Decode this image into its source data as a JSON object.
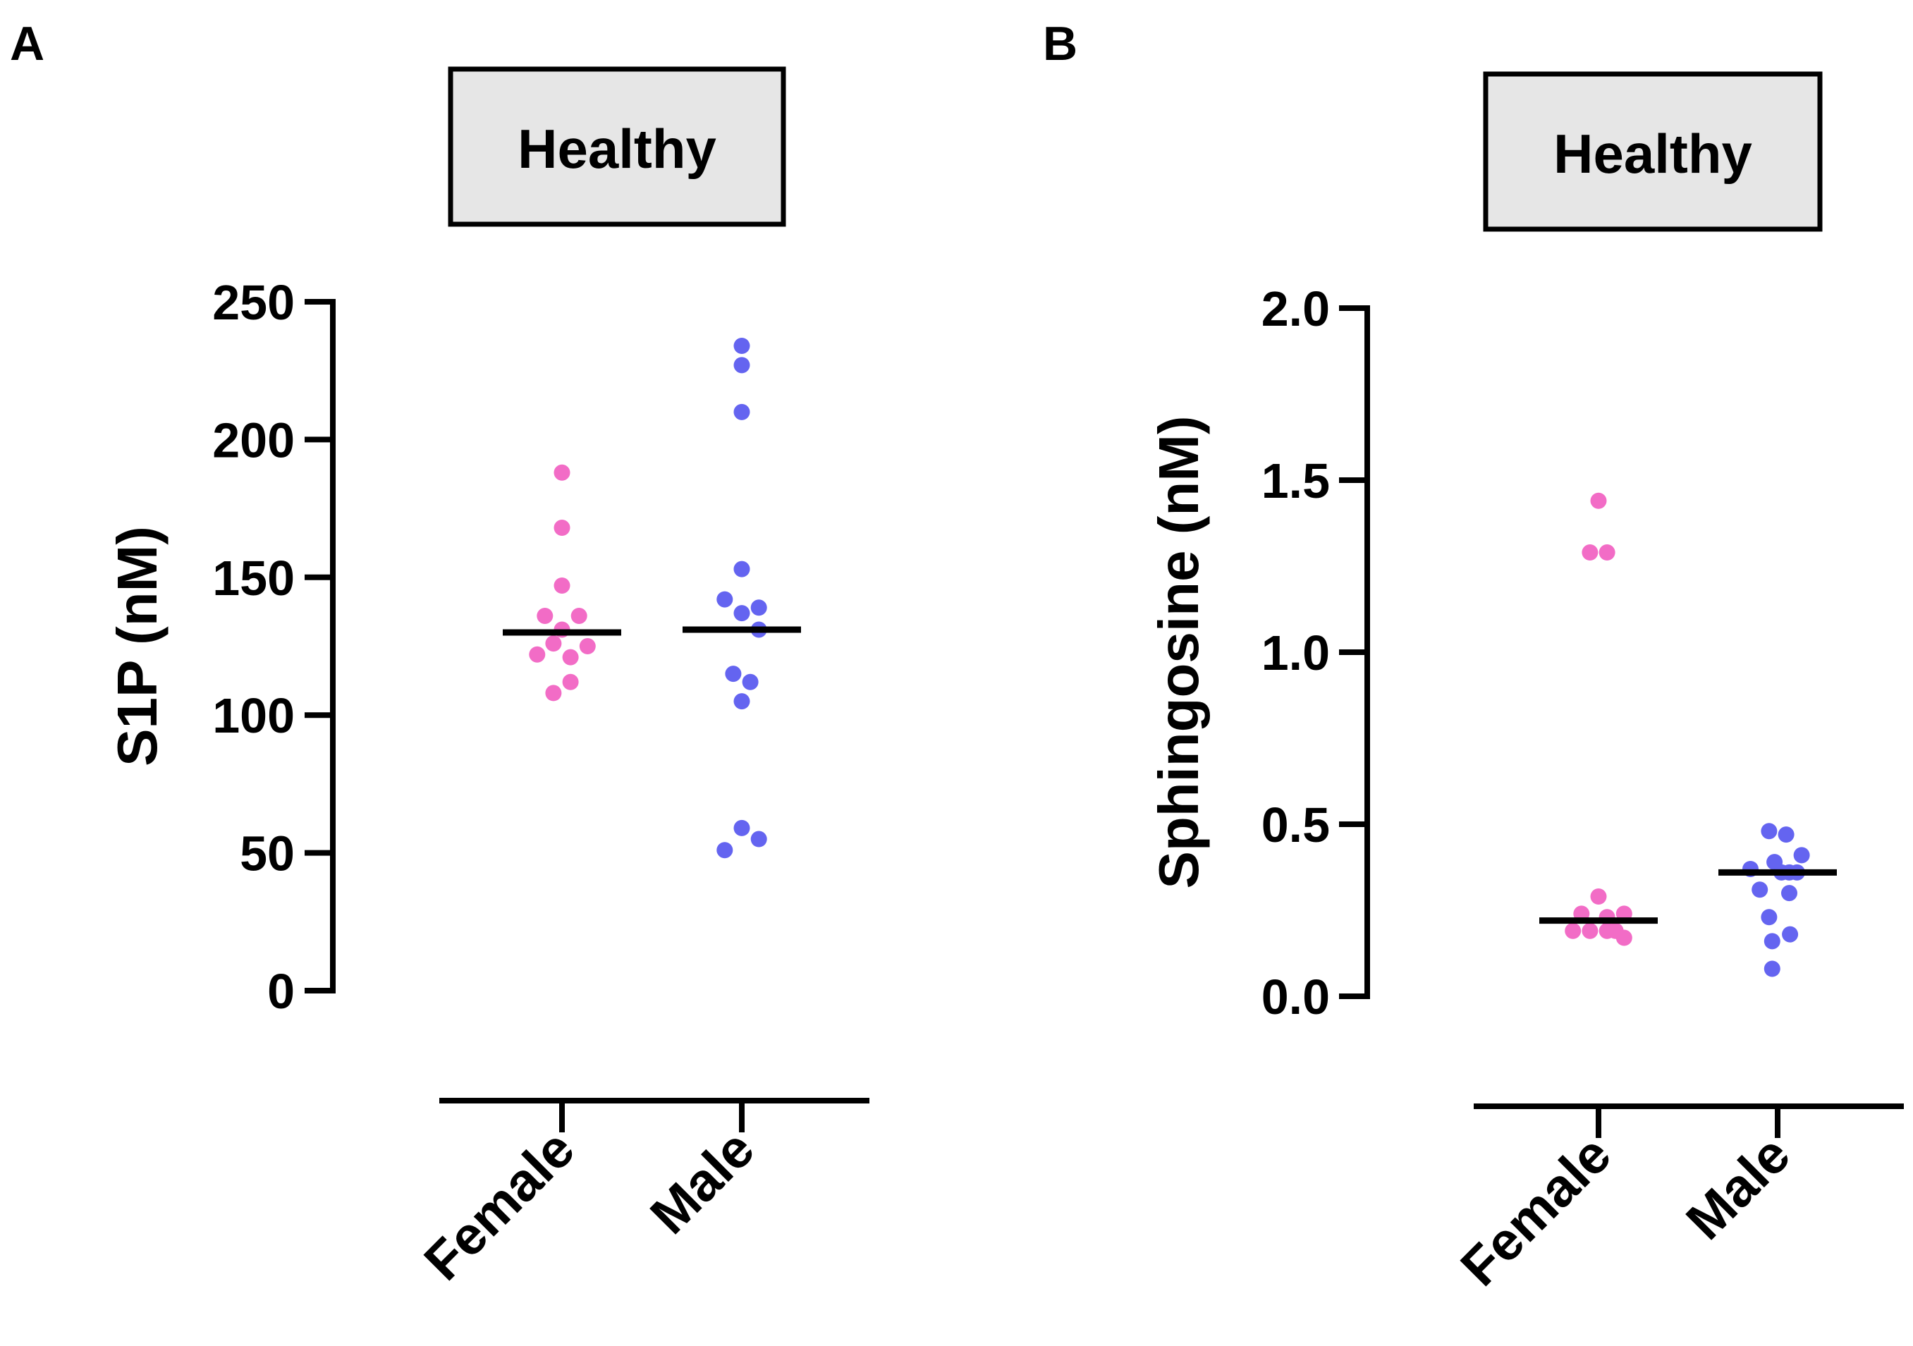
{
  "chart_data": [
    {
      "panel": "A",
      "type": "scatter",
      "title": "Healthy",
      "xlabel": "",
      "ylabel": "S1P (nM)",
      "ylim": [
        0,
        250
      ],
      "yticks": [
        0,
        50,
        100,
        150,
        200,
        250
      ],
      "ytick_labels": [
        "0",
        "50",
        "100",
        "150",
        "200",
        "250"
      ],
      "categories": [
        "Female",
        "Male"
      ],
      "grid": false,
      "series": [
        {
          "name": "Female",
          "color": "#f26cc6",
          "median": 130,
          "values": [
            188,
            168,
            147,
            136,
            136,
            131,
            126,
            125,
            122,
            121,
            112,
            108
          ],
          "offsets": [
            0,
            0,
            0,
            -1.1,
            1.1,
            0,
            -0.55,
            1.65,
            -1.6,
            0.55,
            0.55,
            -0.55
          ]
        },
        {
          "name": "Male",
          "color": "#6464f0",
          "median": 131,
          "values": [
            234,
            227,
            210,
            153,
            142,
            139,
            137,
            131,
            115,
            112,
            105,
            59,
            55,
            51
          ],
          "offsets": [
            0,
            0,
            0,
            0,
            -1.1,
            1.1,
            0,
            1.1,
            -0.55,
            0.55,
            0,
            0,
            1.1,
            -1.1
          ]
        }
      ]
    },
    {
      "panel": "B",
      "type": "scatter",
      "title": "Healthy",
      "xlabel": "",
      "ylabel": "Sphingosine (nM)",
      "ylim": [
        0,
        2.0
      ],
      "yticks": [
        0,
        0.5,
        1.0,
        1.5,
        2.0
      ],
      "ytick_labels": [
        "0.0",
        "0.5",
        "1.0",
        "1.5",
        "2.0"
      ],
      "categories": [
        "Female",
        "Male"
      ],
      "grid": false,
      "series": [
        {
          "name": "Female",
          "color": "#f26cc6",
          "median": 0.22,
          "values": [
            1.44,
            1.29,
            1.29,
            0.29,
            0.24,
            0.24,
            0.23,
            0.19,
            0.19,
            0.19,
            0.19,
            0.17
          ],
          "offsets": [
            0,
            -0.55,
            0.55,
            0,
            -1.1,
            1.65,
            0.55,
            -1.65,
            -0.55,
            0.55,
            1.1,
            1.65
          ]
        },
        {
          "name": "Male",
          "color": "#6464f0",
          "median": 0.36,
          "values": [
            0.48,
            0.47,
            0.41,
            0.39,
            0.37,
            0.36,
            0.36,
            0.36,
            0.31,
            0.3,
            0.23,
            0.18,
            0.16,
            0.08
          ],
          "offsets": [
            -0.55,
            0.55,
            1.55,
            -0.2,
            -1.75,
            0.25,
            0.75,
            1.25,
            -1.15,
            0.75,
            -0.55,
            0.8,
            -0.35,
            -0.35
          ]
        }
      ]
    }
  ]
}
